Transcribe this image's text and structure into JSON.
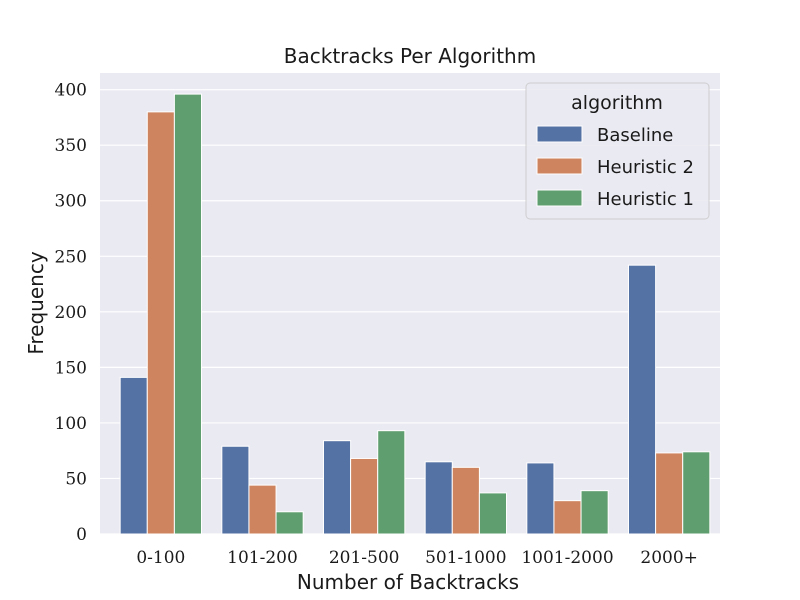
{
  "chart_data": {
    "type": "bar",
    "title": "Backtracks Per Algorithm",
    "xlabel": "Number of Backtracks",
    "ylabel": "Frequency",
    "categories": [
      "0-100",
      "101-200",
      "201-500",
      "501-1000",
      "1001-2000",
      "2000+"
    ],
    "series": [
      {
        "name": "Baseline",
        "color": "#5572a4",
        "values": [
          141,
          79,
          84,
          65,
          64,
          242
        ]
      },
      {
        "name": "Heuristic 2",
        "color": "#cd845f",
        "values": [
          380,
          44,
          68,
          60,
          30,
          73
        ]
      },
      {
        "name": "Heuristic 1",
        "color": "#5f9e6e",
        "values": [
          396,
          20,
          93,
          37,
          39,
          74
        ]
      }
    ],
    "ylim": [
      0,
      415
    ],
    "yticks": [
      "0",
      "50",
      "100",
      "150",
      "200",
      "250",
      "300",
      "350",
      "400"
    ],
    "grid": true,
    "legend": {
      "title": "algorithm",
      "placement": "top-right"
    }
  }
}
